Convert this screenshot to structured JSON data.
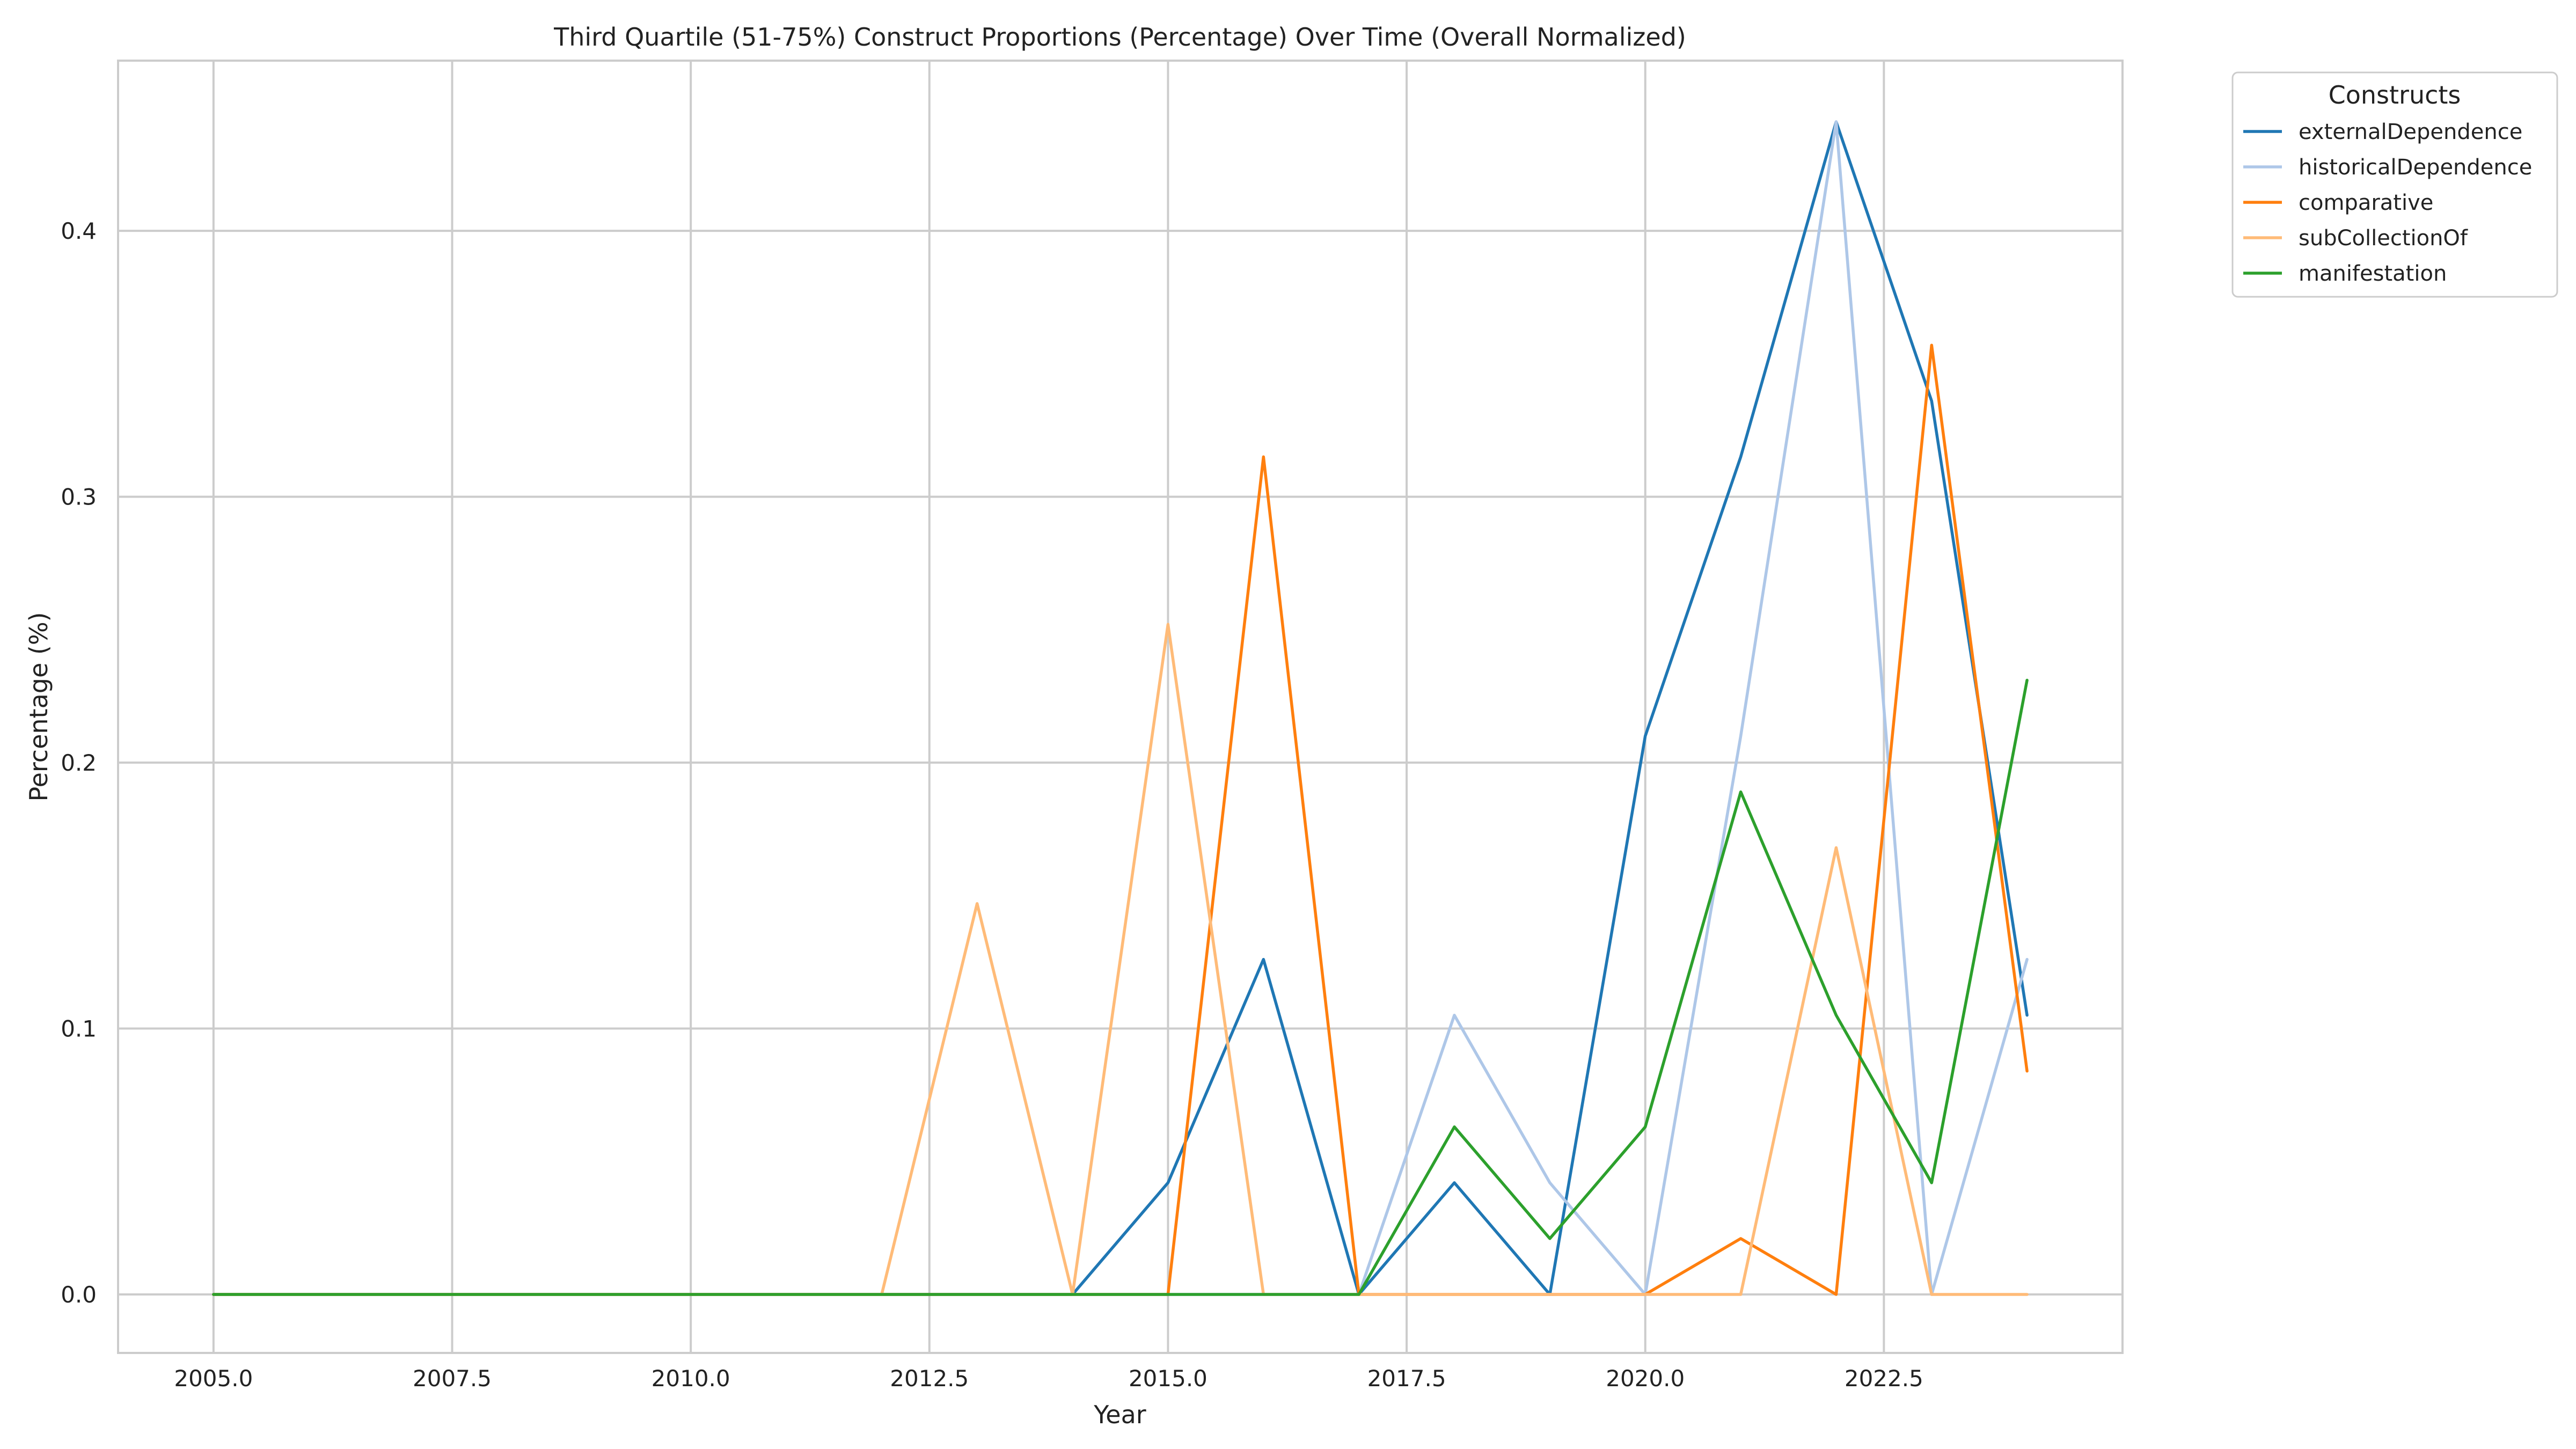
{
  "chart_data": {
    "type": "line",
    "title": "Third Quartile (51-75%) Construct Proportions (Percentage) Over Time (Overall Normalized)",
    "xlabel": "Year",
    "ylabel": "Percentage (%)",
    "xlim": [
      2004.0,
      2025.0
    ],
    "ylim": [
      -0.022,
      0.464
    ],
    "xticks": [
      2005.0,
      2007.5,
      2010.0,
      2012.5,
      2015.0,
      2017.5,
      2020.0,
      2022.5
    ],
    "xtick_labels": [
      "2005.0",
      "2007.5",
      "2010.0",
      "2012.5",
      "2015.0",
      "2017.5",
      "2020.0",
      "2022.5"
    ],
    "yticks": [
      0.0,
      0.1,
      0.2,
      0.3,
      0.4
    ],
    "ytick_labels": [
      "0.0",
      "0.1",
      "0.2",
      "0.3",
      "0.4"
    ],
    "grid": true,
    "legend_title": "Constructs",
    "legend_placement": "outside-top-right",
    "x": [
      2005,
      2006,
      2007,
      2008,
      2009,
      2010,
      2011,
      2012,
      2013,
      2014,
      2015,
      2016,
      2017,
      2018,
      2019,
      2020,
      2021,
      2022,
      2023,
      2024
    ],
    "series": [
      {
        "name": "externalDependence",
        "color": "#1f77b4",
        "values": [
          0,
          0,
          0,
          0,
          0,
          0,
          0,
          0,
          0,
          0,
          0.042,
          0.126,
          0,
          0.042,
          0,
          0.21,
          0.315,
          0.441,
          0.336,
          0.105
        ]
      },
      {
        "name": "historicalDependence",
        "color": "#aec7e8",
        "values": [
          0,
          0,
          0,
          0,
          0,
          0,
          0,
          0,
          0,
          0,
          0,
          0,
          0,
          0.105,
          0.042,
          0,
          0.21,
          0.441,
          0,
          0.126
        ]
      },
      {
        "name": "comparative",
        "color": "#ff7f0e",
        "values": [
          0,
          0,
          0,
          0,
          0,
          0,
          0,
          0,
          0,
          0,
          0,
          0.315,
          0,
          0,
          0,
          0,
          0.021,
          0,
          0.357,
          0.084
        ]
      },
      {
        "name": "subCollectionOf",
        "color": "#ffbb78",
        "values": [
          0,
          0,
          0,
          0,
          0,
          0,
          0,
          0,
          0.147,
          0,
          0.252,
          0,
          0,
          0,
          0,
          0,
          0,
          0.168,
          0,
          0
        ]
      },
      {
        "name": "manifestation",
        "color": "#2ca02c",
        "values": [
          0,
          0,
          0,
          0,
          0,
          0,
          0,
          0,
          0,
          0,
          0,
          0,
          0,
          0.063,
          0.021,
          0.063,
          0.189,
          0.105,
          0.042,
          0.231
        ]
      }
    ]
  }
}
